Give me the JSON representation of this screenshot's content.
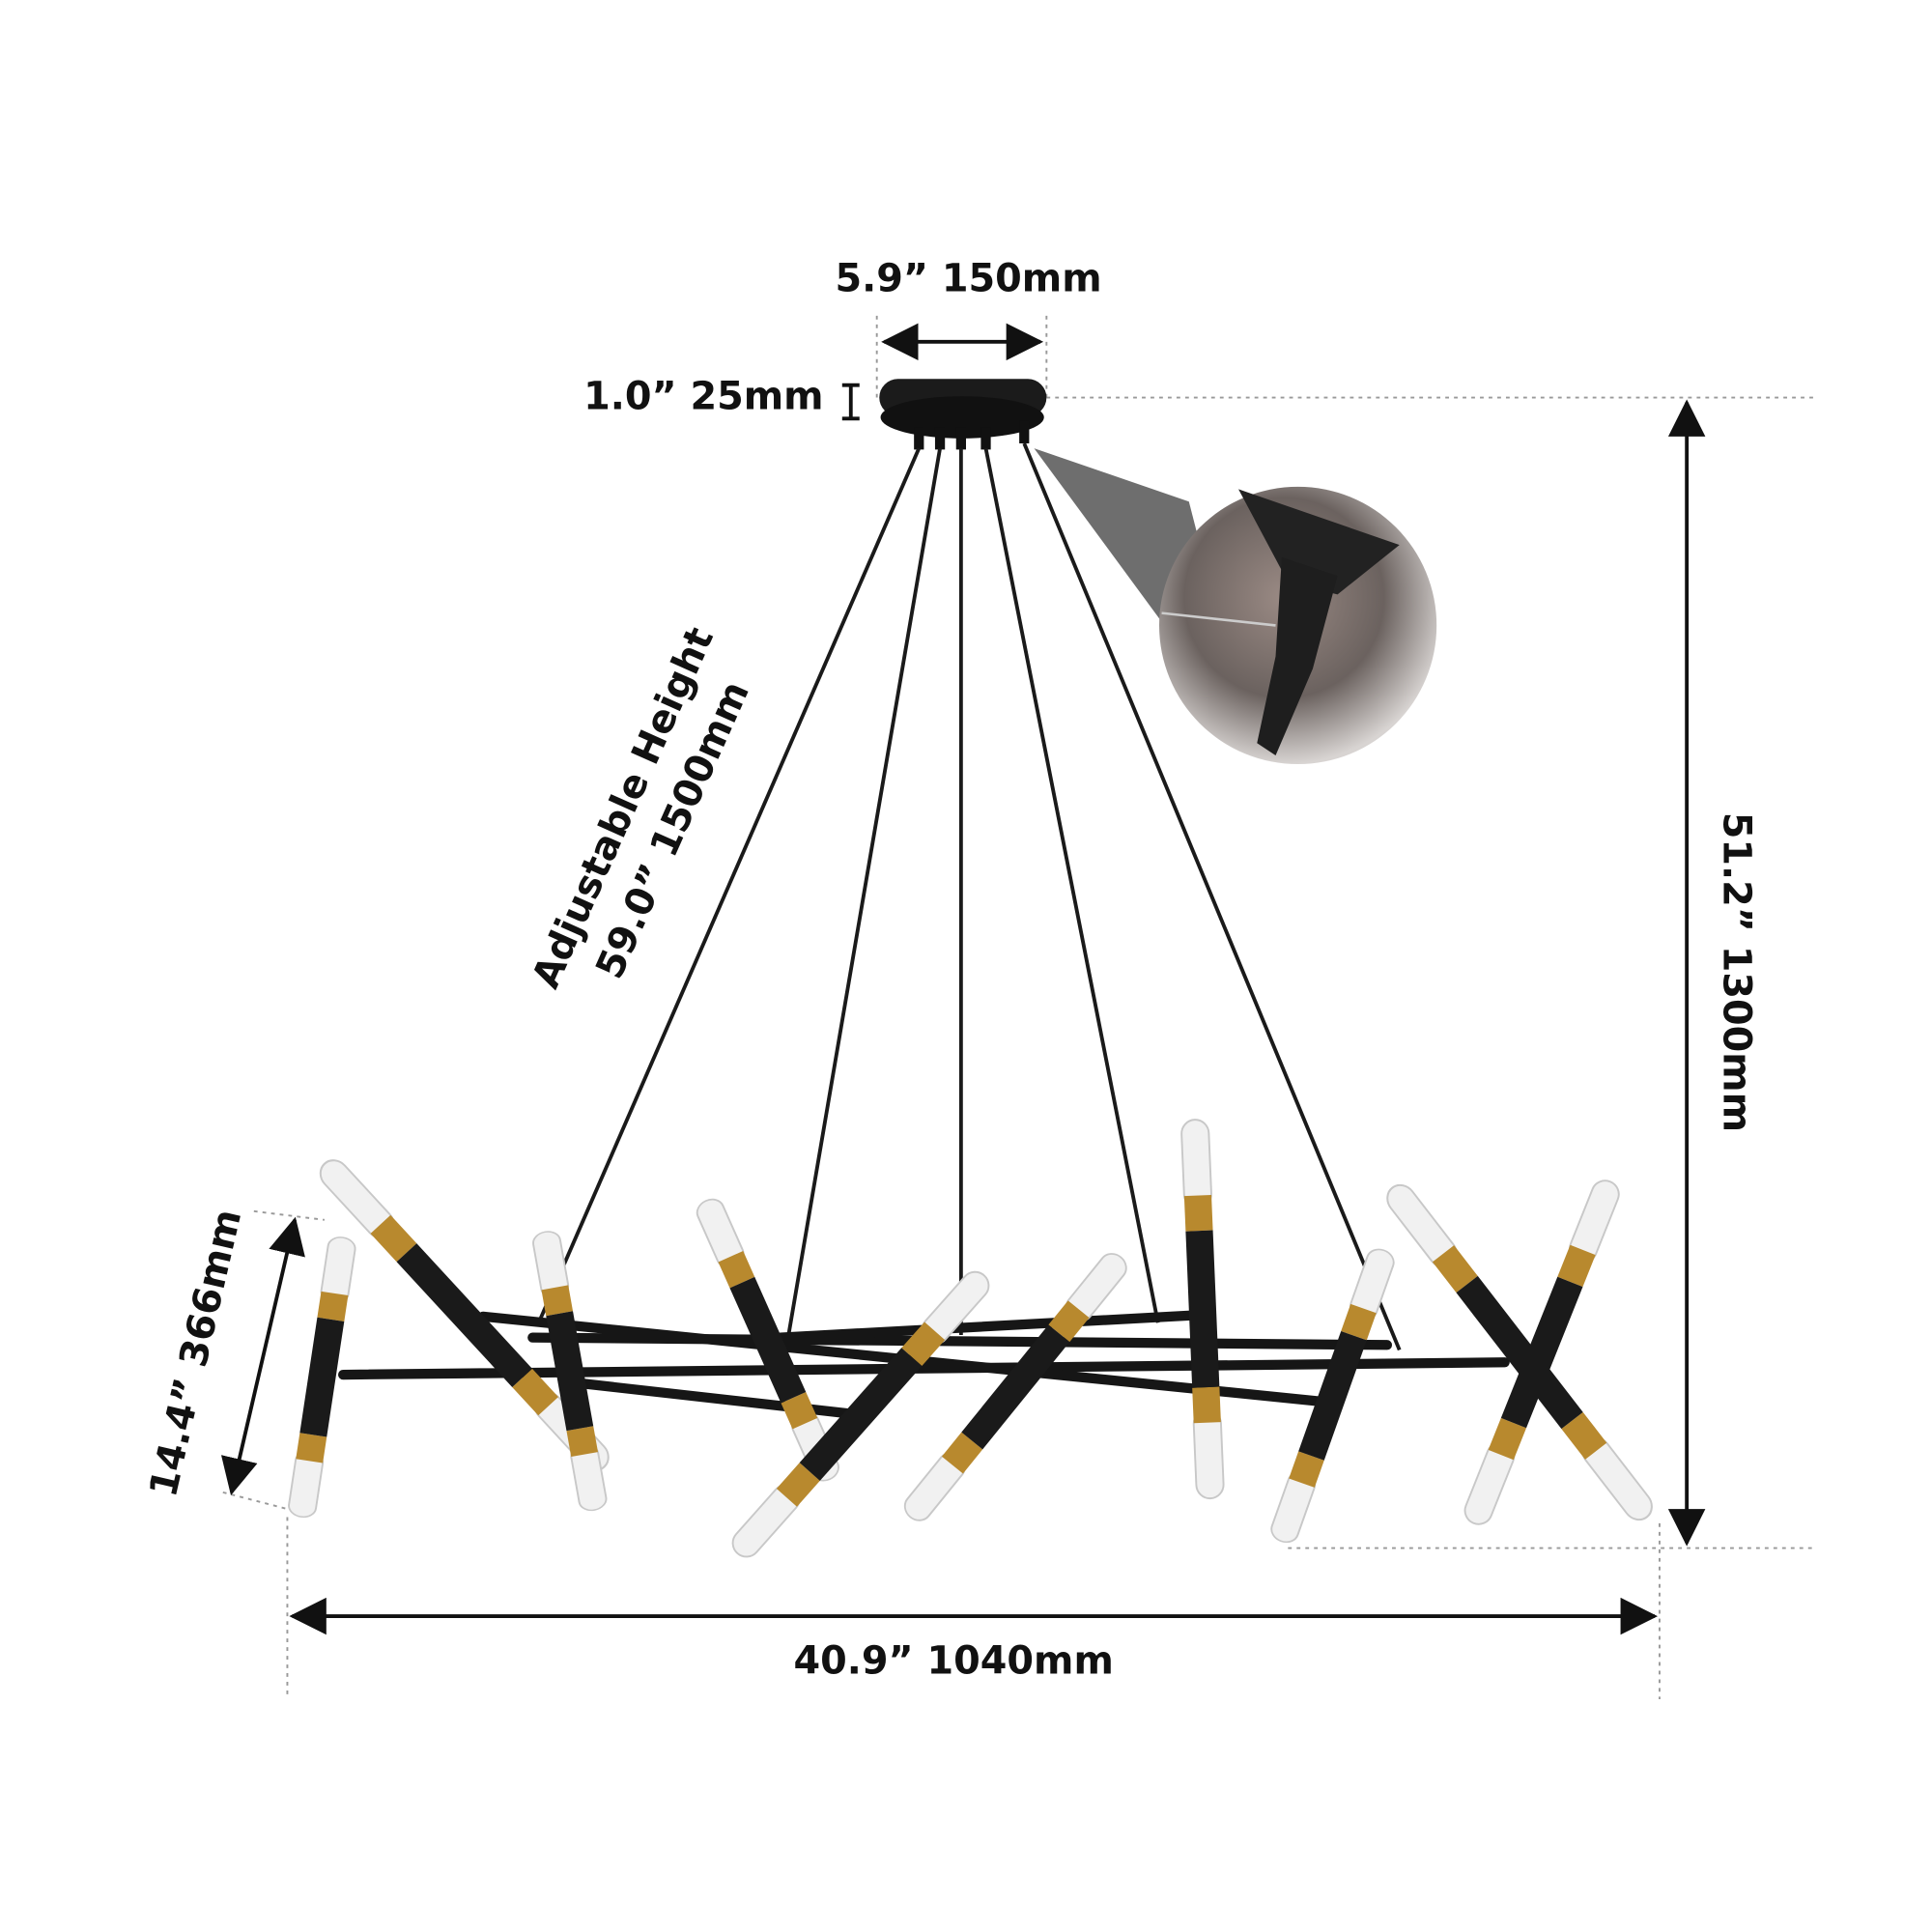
{
  "dimensions": {
    "canopy_width": "5.9” 150mm",
    "canopy_height": "1.0” 25mm",
    "adjustable_height": [
      "Adjustable Height",
      "59.0” 1500mm"
    ],
    "total_height": "51.2” 1300mm",
    "fixture_height": "14.4” 366mm",
    "total_width": "40.9” 1040mm"
  }
}
